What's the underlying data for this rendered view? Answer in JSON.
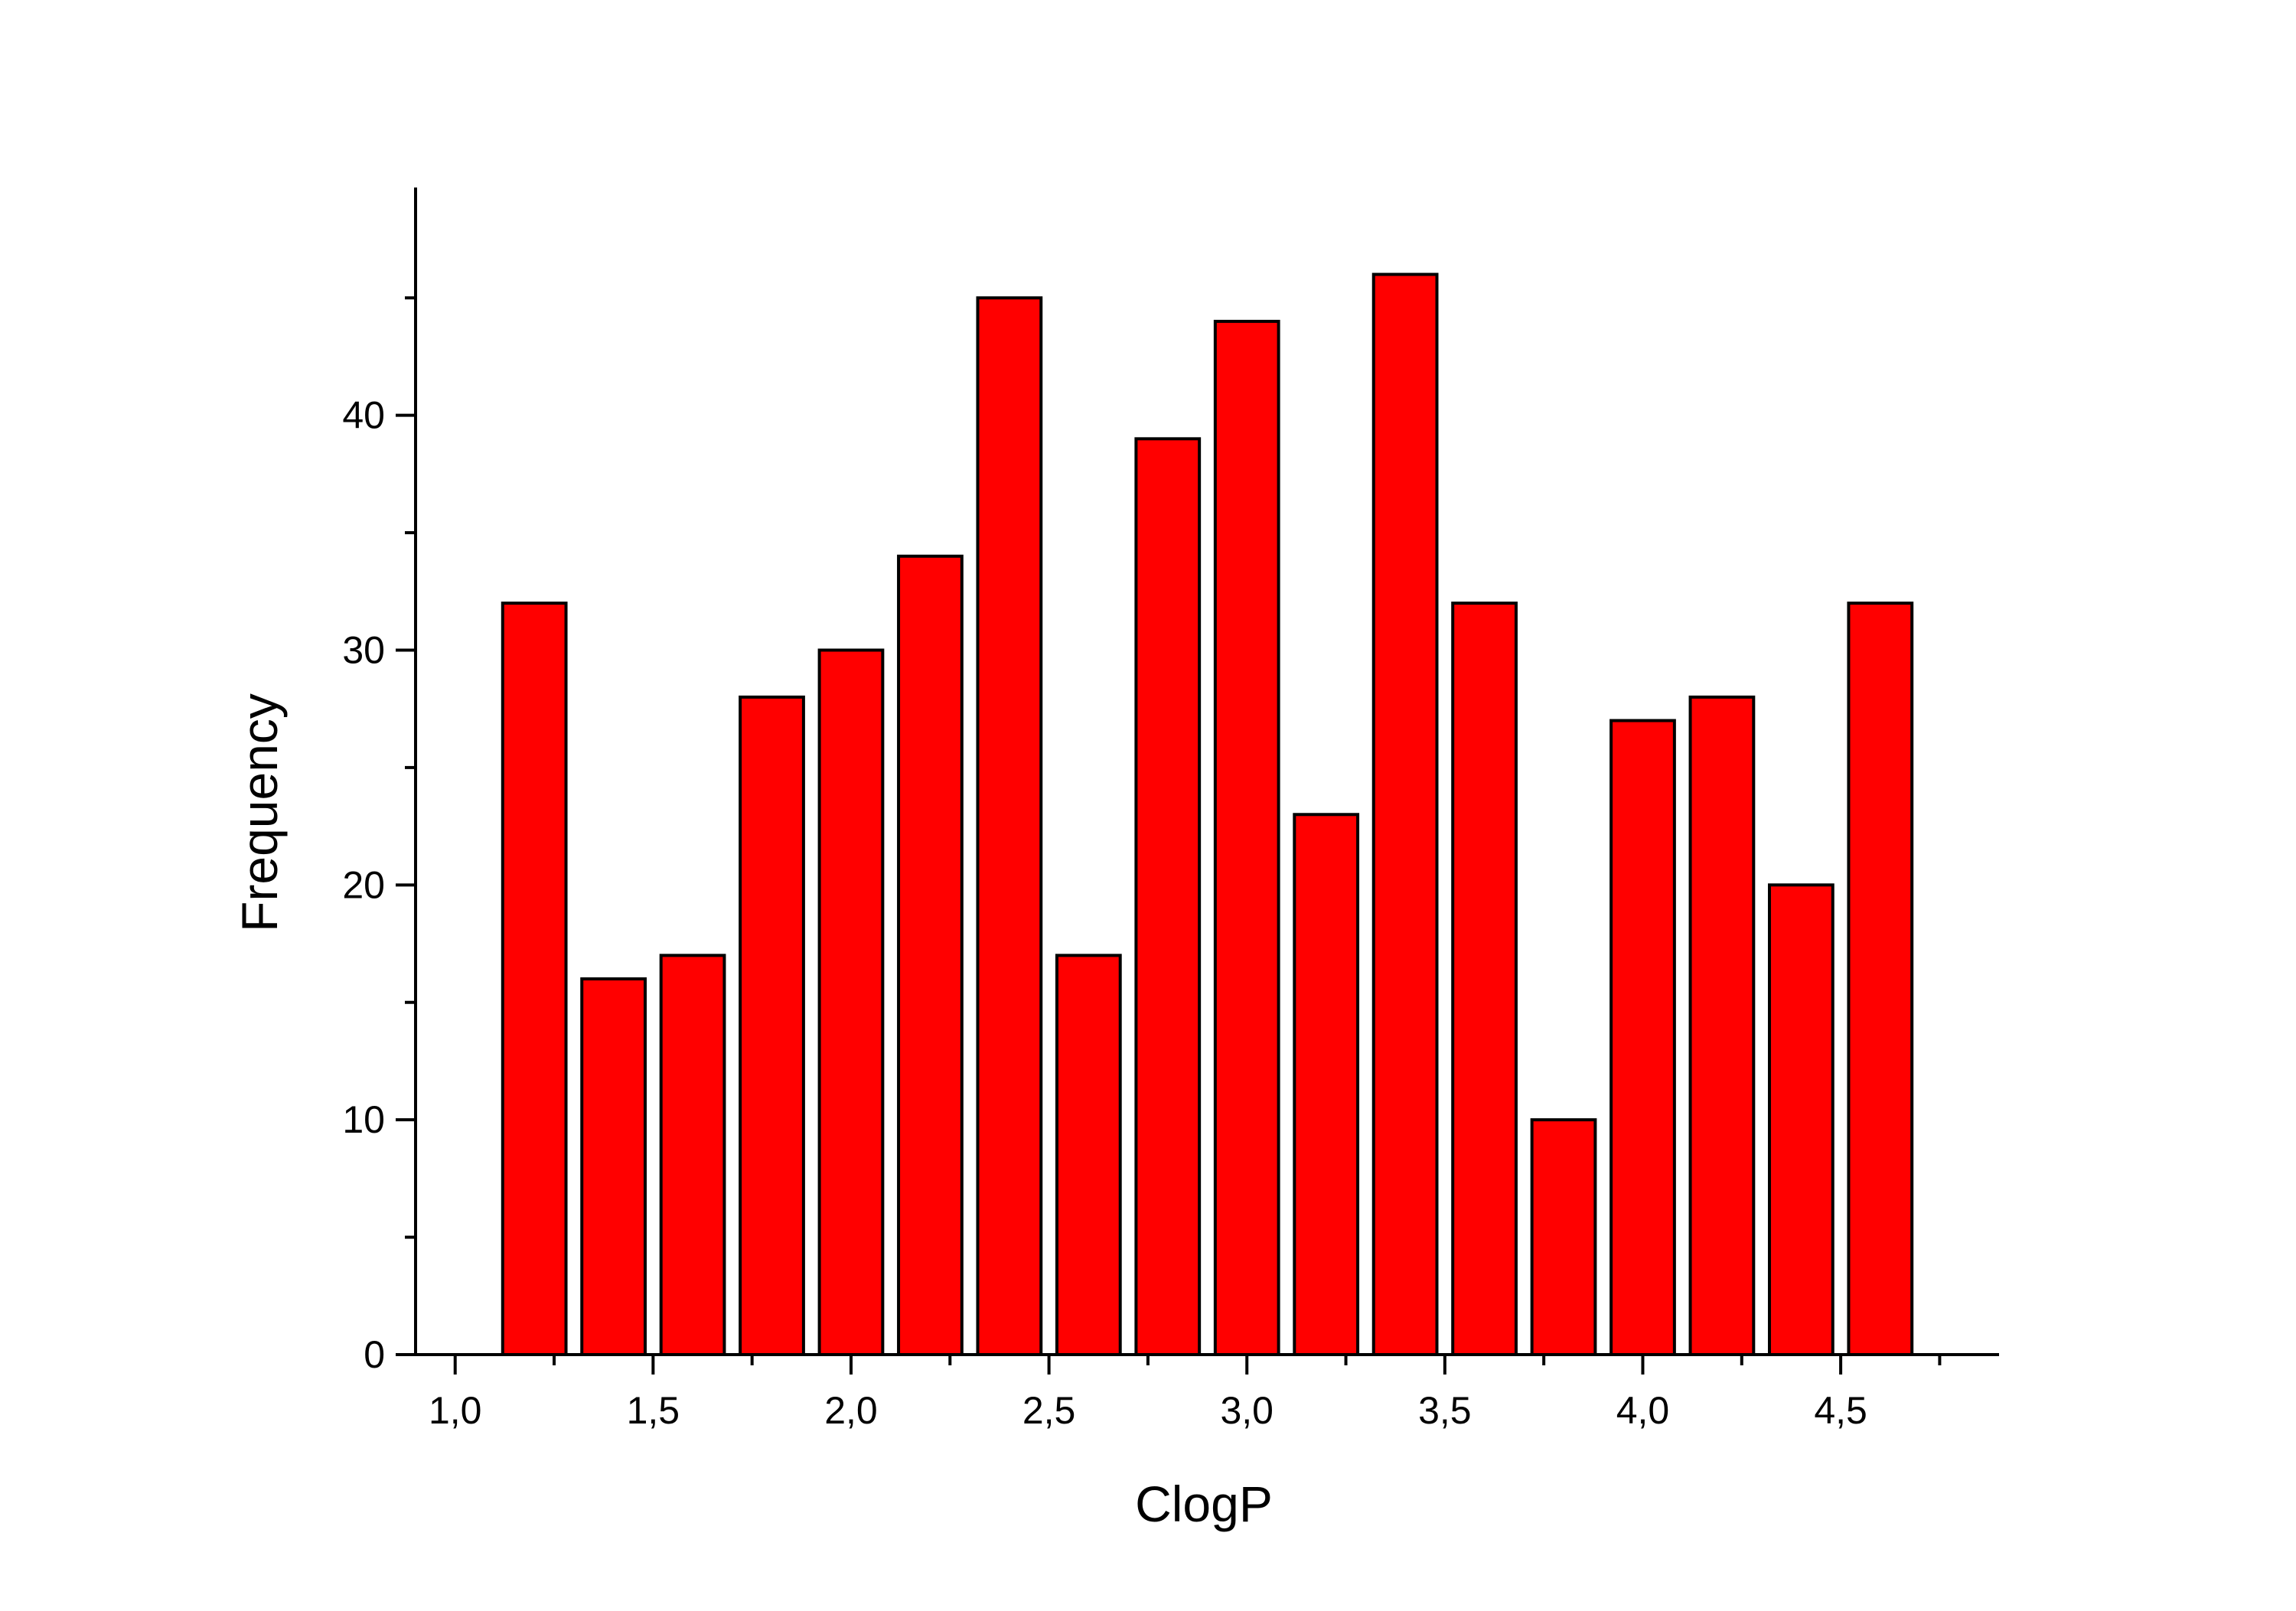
{
  "chart_data": {
    "type": "bar",
    "title": "",
    "xlabel": "ClogP",
    "ylabel": "Frequency",
    "bar_color": "#ff0000",
    "bar_edge_color": "#000000",
    "bin_width": 0.2,
    "x": [
      1.2,
      1.4,
      1.6,
      1.8,
      2.0,
      2.2,
      2.4,
      2.6,
      2.8,
      3.0,
      3.2,
      3.4,
      3.6,
      3.8,
      4.0,
      4.2,
      4.4,
      4.6
    ],
    "values": [
      32,
      16,
      17,
      28,
      30,
      34,
      45,
      17,
      39,
      44,
      23,
      46,
      32,
      10,
      27,
      28,
      20,
      32
    ],
    "xlim": [
      0.9,
      4.9
    ],
    "ylim": [
      0,
      49.7
    ],
    "x_major_ticks": [
      1.0,
      1.5,
      2.0,
      2.5,
      3.0,
      3.5,
      4.0,
      4.5
    ],
    "x_tick_labels": [
      "1,0",
      "1,5",
      "2,0",
      "2,5",
      "3,0",
      "3,5",
      "4,0",
      "4,5"
    ],
    "x_minor_ticks": [
      1.25,
      1.75,
      2.25,
      2.75,
      3.25,
      3.75,
      4.25,
      4.75
    ],
    "y_major_ticks": [
      0,
      10,
      20,
      30,
      40
    ],
    "y_tick_labels": [
      "0",
      "10",
      "20",
      "30",
      "40"
    ],
    "y_minor_ticks": [
      5,
      15,
      25,
      35,
      45
    ],
    "grid": false,
    "legend": "none"
  }
}
